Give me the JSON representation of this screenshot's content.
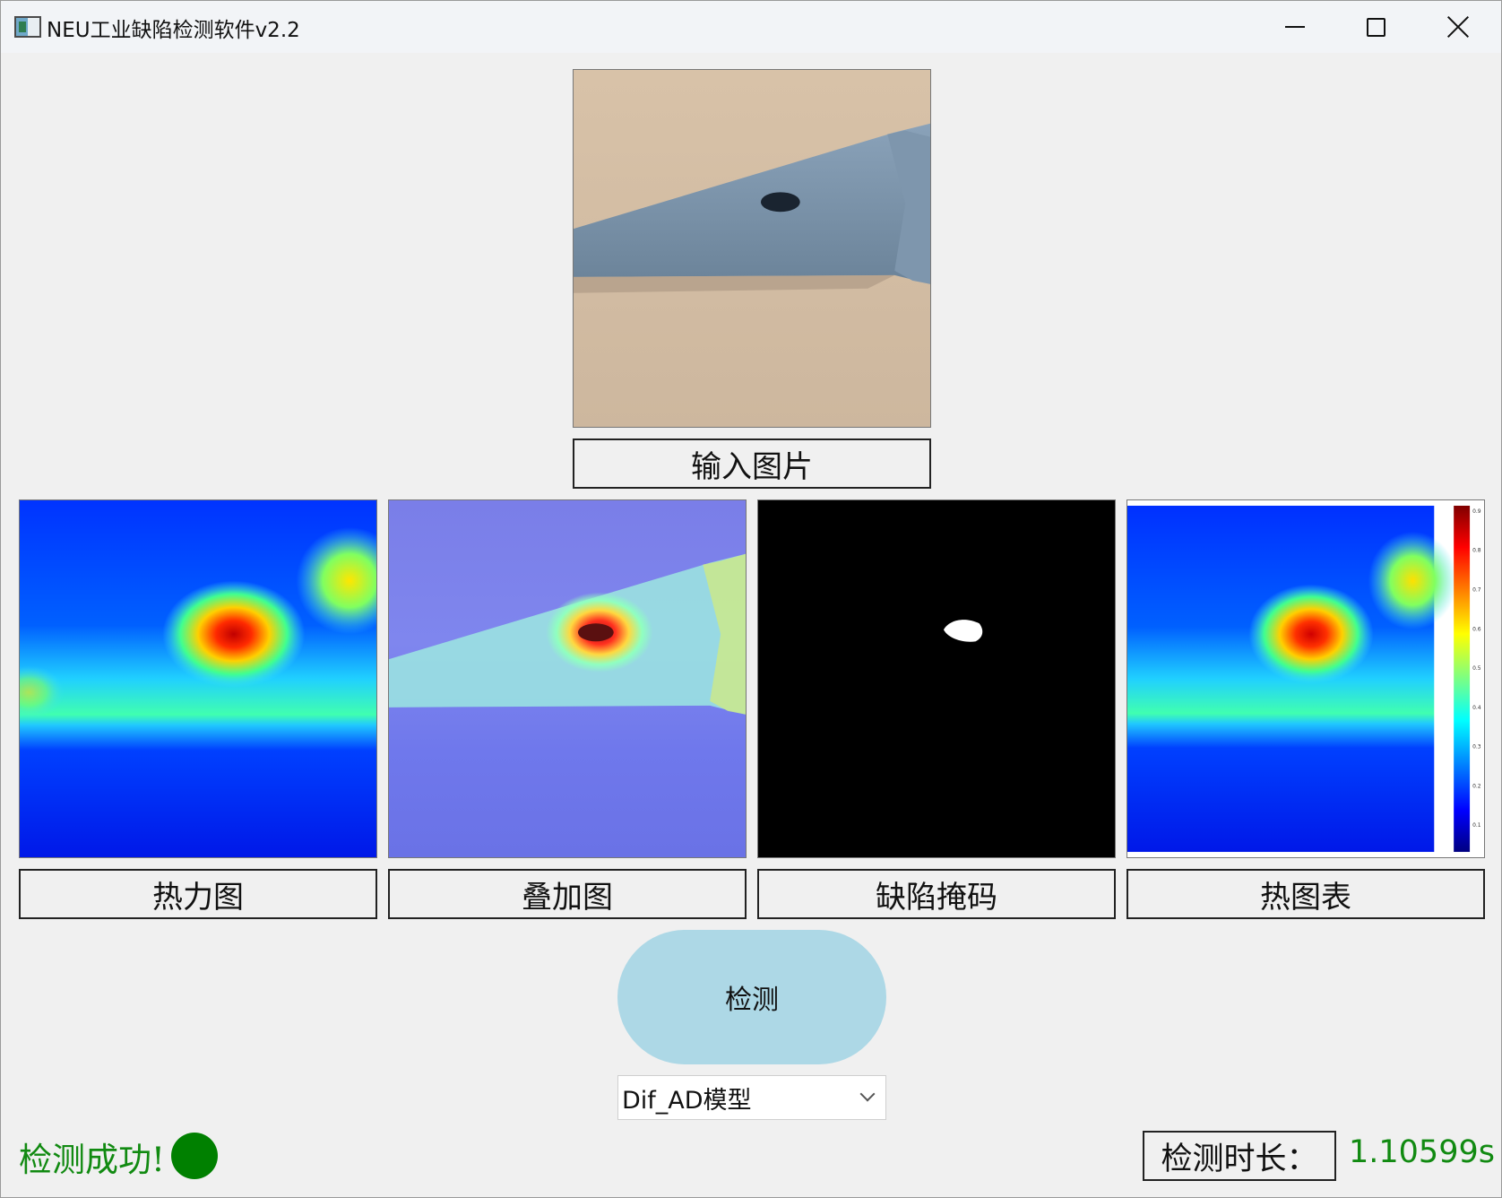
{
  "window": {
    "title": "NEU工业缺陷检测软件v2.2",
    "icons": [
      "app-icon",
      "minimize-icon",
      "maximize-icon",
      "close-icon"
    ]
  },
  "input_panel": {
    "caption": "输入图片"
  },
  "result_panels": [
    {
      "caption": "热力图"
    },
    {
      "caption": "叠加图"
    },
    {
      "caption": "缺陷掩码"
    },
    {
      "caption": "热图表"
    }
  ],
  "detect_button": {
    "label": "检测",
    "color": "#add8e6"
  },
  "model_select": {
    "selected": "Dif_AD模型"
  },
  "status": {
    "text": "检测成功!",
    "color": "#118a11",
    "indicator_color": "#008000"
  },
  "duration": {
    "label": "检测时长：",
    "value": "1.10599s"
  }
}
